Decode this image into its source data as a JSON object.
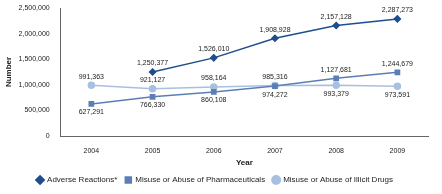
{
  "chart_data": {
    "type": "line",
    "x_label": "Year",
    "y_label": "Number",
    "categories": [
      "2004",
      "2005",
      "2006",
      "2007",
      "2008",
      "2009"
    ],
    "ylim": [
      0,
      2500000
    ],
    "yticks": [
      0,
      {
        "value": 500000,
        "label": "500,000"
      },
      {
        "value": 1000000,
        "label": "1,000,000"
      },
      {
        "value": 1500000,
        "label": "1,500,000"
      },
      {
        "value": 2000000,
        "label": "2,000,000"
      },
      {
        "value": 2500000,
        "label": "2,500,000"
      }
    ],
    "grid": false,
    "legend": "bottom",
    "data_labels": true,
    "series": [
      {
        "name": "Adverse Reactions*",
        "color": "#1f4e8c",
        "marker": "diamond",
        "values": [
          null,
          1250377,
          1526010,
          1908928,
          2157128,
          2287273
        ],
        "value_labels": [
          null,
          "1,250,377",
          "1,526,010",
          "1,908,928",
          "2,157,128",
          "2,287,273"
        ]
      },
      {
        "name": "Misuse or Abuse of Pharmaceuticals",
        "color": "#5b7fb5",
        "marker": "square",
        "values": [
          627291,
          766330,
          860108,
          974272,
          1127681,
          1244679
        ],
        "value_labels": [
          "627,291",
          "766,330",
          "860,108",
          "974,272",
          "1,127,681",
          "1,244,679"
        ]
      },
      {
        "name": "Misuse or Abuse of Illicit Drugs",
        "color": "#a8c0e0",
        "marker": "circle",
        "values": [
          991363,
          921127,
          958164,
          985316,
          993379,
          973591
        ],
        "value_labels": [
          "991,363",
          "921,127",
          "958,164",
          "985,316",
          "993,379",
          "973,591"
        ]
      }
    ]
  }
}
